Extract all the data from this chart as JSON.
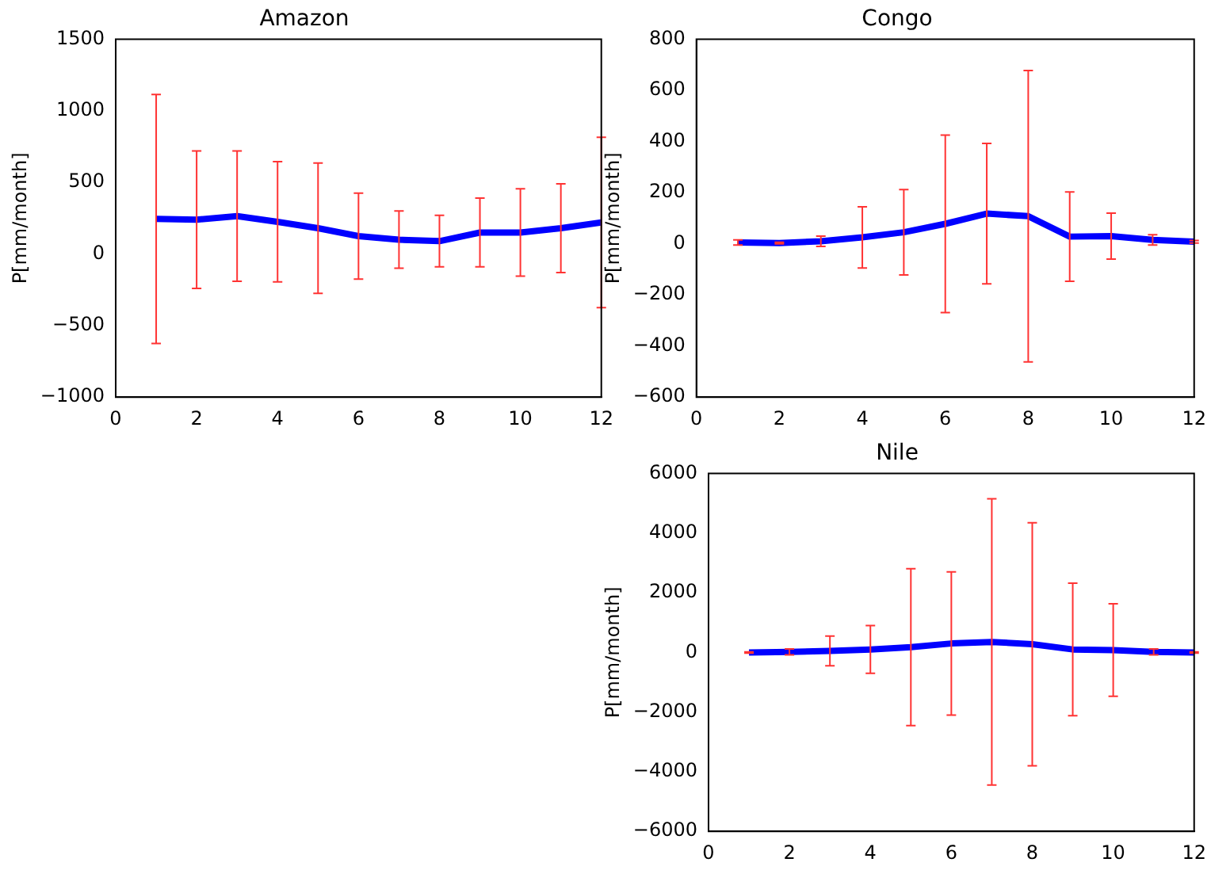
{
  "chart_data": [
    {
      "type": "line",
      "title": "Amazon",
      "ylabel": "P[mm/month]",
      "x": [
        1,
        2,
        3,
        4,
        5,
        6,
        7,
        8,
        9,
        10,
        11,
        12
      ],
      "values": [
        245,
        240,
        265,
        225,
        180,
        125,
        100,
        90,
        150,
        150,
        180,
        220
      ],
      "errors": [
        870,
        480,
        455,
        420,
        455,
        300,
        200,
        180,
        240,
        305,
        310,
        595
      ],
      "color": "#0000ff",
      "marker": "none",
      "grid": false,
      "xlim": [
        0,
        12
      ],
      "xticks": [
        0,
        2,
        4,
        6,
        8,
        10,
        12
      ],
      "ylim": [
        -1000,
        1500
      ],
      "yticks": [
        -1000,
        -500,
        0,
        500,
        1000,
        1500
      ]
    },
    {
      "type": "line",
      "title": "Congo",
      "ylabel": "P[mm/month]",
      "x": [
        1,
        2,
        3,
        4,
        5,
        6,
        7,
        8,
        9,
        10,
        11,
        12
      ],
      "values": [
        5,
        3,
        10,
        25,
        45,
        78,
        118,
        108,
        28,
        30,
        15,
        8
      ],
      "errors": [
        10,
        3,
        20,
        120,
        167,
        347,
        275,
        570,
        175,
        90,
        20,
        5
      ],
      "color": "#0000ff",
      "marker": "none",
      "grid": false,
      "xlim": [
        0,
        12
      ],
      "xticks": [
        0,
        2,
        4,
        6,
        8,
        10,
        12
      ],
      "ylim": [
        -600,
        800
      ],
      "yticks": [
        -600,
        -400,
        -200,
        0,
        200,
        400,
        600,
        800
      ]
    },
    {
      "type": "line",
      "title": "Nile",
      "ylabel": "P[mm/month]",
      "x": [
        1,
        2,
        3,
        4,
        5,
        6,
        7,
        8,
        9,
        10,
        11,
        12
      ],
      "values": [
        0,
        20,
        50,
        100,
        175,
        300,
        350,
        275,
        100,
        80,
        20,
        0
      ],
      "errors": [
        20,
        100,
        500,
        800,
        2630,
        2400,
        4800,
        4075,
        2225,
        1550,
        100,
        20
      ],
      "color": "#0000ff",
      "marker": "none",
      "grid": false,
      "xlim": [
        0,
        12
      ],
      "xticks": [
        0,
        2,
        4,
        6,
        8,
        10,
        12
      ],
      "ylim": [
        -6000,
        6000
      ],
      "yticks": [
        -6000,
        -4000,
        -2000,
        0,
        2000,
        4000,
        6000
      ]
    }
  ]
}
